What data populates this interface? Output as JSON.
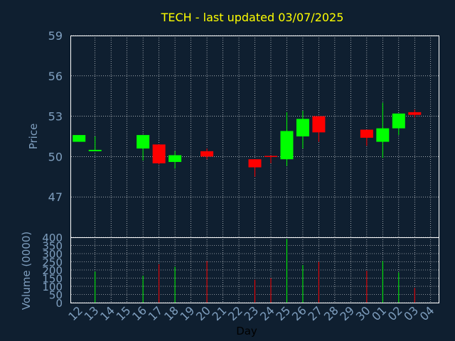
{
  "chart_data": {
    "type": "candlestick",
    "title": "TECH - last updated 03/07/2025",
    "xlabel": "Day",
    "x_ticks": [
      "12",
      "13",
      "14",
      "15",
      "16",
      "17",
      "18",
      "19",
      "20",
      "21",
      "22",
      "23",
      "24",
      "25",
      "26",
      "27",
      "28",
      "29",
      "30",
      "01",
      "02",
      "03",
      "04"
    ],
    "price_panel": {
      "ylabel": "Price",
      "ylim": [
        44,
        59
      ],
      "y_ticks": [
        47,
        50,
        53,
        56,
        59
      ],
      "grid": true
    },
    "volume_panel": {
      "ylabel": "Volume (0000)",
      "ylim": [
        0,
        400
      ],
      "y_ticks": [
        0,
        50,
        100,
        150,
        200,
        250,
        300,
        350,
        400
      ],
      "grid": true
    },
    "colors": {
      "up": "#00ff00",
      "down": "#ff0000",
      "background": "#0f1f30",
      "grid": "#ffffff",
      "axis": "#7f9fbf",
      "title": "#ffff00"
    },
    "candles": [
      {
        "day": "12",
        "open": 51.1,
        "high": 51.6,
        "low": 51.1,
        "close": 51.6,
        "volume": 0
      },
      {
        "day": "13",
        "open": 50.4,
        "high": 51.5,
        "low": 50.4,
        "close": 50.5,
        "volume": 190
      },
      {
        "day": "16",
        "open": 50.6,
        "high": 51.6,
        "low": 49.7,
        "close": 51.6,
        "volume": 165
      },
      {
        "day": "17",
        "open": 50.9,
        "high": 50.9,
        "low": 49.4,
        "close": 49.5,
        "volume": 235
      },
      {
        "day": "18",
        "open": 49.6,
        "high": 50.4,
        "low": 49.1,
        "close": 50.1,
        "volume": 220
      },
      {
        "day": "20",
        "open": 50.4,
        "high": 50.6,
        "low": 49.8,
        "close": 50.0,
        "volume": 255
      },
      {
        "day": "23",
        "open": 49.8,
        "high": 49.8,
        "low": 48.5,
        "close": 49.2,
        "volume": 140
      },
      {
        "day": "24",
        "open": 50.05,
        "high": 50.1,
        "low": 49.5,
        "close": 50.0,
        "volume": 150
      },
      {
        "day": "25",
        "open": 49.8,
        "high": 53.3,
        "low": 49.3,
        "close": 51.9,
        "volume": 390
      },
      {
        "day": "26",
        "open": 51.5,
        "high": 53.4,
        "low": 50.6,
        "close": 52.8,
        "volume": 230
      },
      {
        "day": "27",
        "open": 53.0,
        "high": 53.0,
        "low": 51.1,
        "close": 51.8,
        "volume": 250
      },
      {
        "day": "30",
        "open": 52.0,
        "high": 52.0,
        "low": 50.8,
        "close": 51.4,
        "volume": 195
      },
      {
        "day": "01",
        "open": 51.1,
        "high": 54.0,
        "low": 49.9,
        "close": 52.1,
        "volume": 255
      },
      {
        "day": "02",
        "open": 52.1,
        "high": 53.2,
        "low": 51.6,
        "close": 53.2,
        "volume": 185
      },
      {
        "day": "03",
        "open": 53.3,
        "high": 53.5,
        "low": 52.9,
        "close": 53.1,
        "volume": 90
      }
    ]
  }
}
